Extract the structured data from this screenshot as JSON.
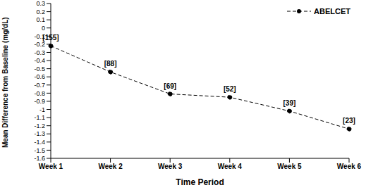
{
  "chart_data": {
    "type": "line",
    "x_label": "Time Period",
    "y_label": "Mean Difference from Baseline (mg/dL)",
    "categories": [
      "Week 1",
      "Week 2",
      "Week 3",
      "Week 4",
      "Week 5",
      "Week 6"
    ],
    "series": [
      {
        "name": "ABELCET",
        "color": "#000000",
        "marker": "circle",
        "line_style": "dashed",
        "values": [
          -0.22,
          -0.54,
          -0.81,
          -0.85,
          -1.02,
          -1.24
        ]
      }
    ],
    "annotations": [
      "[155]",
      "[88]",
      "[69]",
      "[52]",
      "[39]",
      "[23]"
    ],
    "ylim": [
      -1.6,
      0.3
    ],
    "yticks": [
      0.3,
      0.2,
      0.1,
      0,
      -0.1,
      -0.2,
      -0.3,
      -0.4,
      -0.5,
      -0.6,
      -0.7,
      -0.8,
      -0.9,
      -1,
      -1.1,
      -1.2,
      -1.3,
      -1.4,
      -1.5,
      -1.6
    ],
    "legend": "upper right",
    "grid": false
  }
}
